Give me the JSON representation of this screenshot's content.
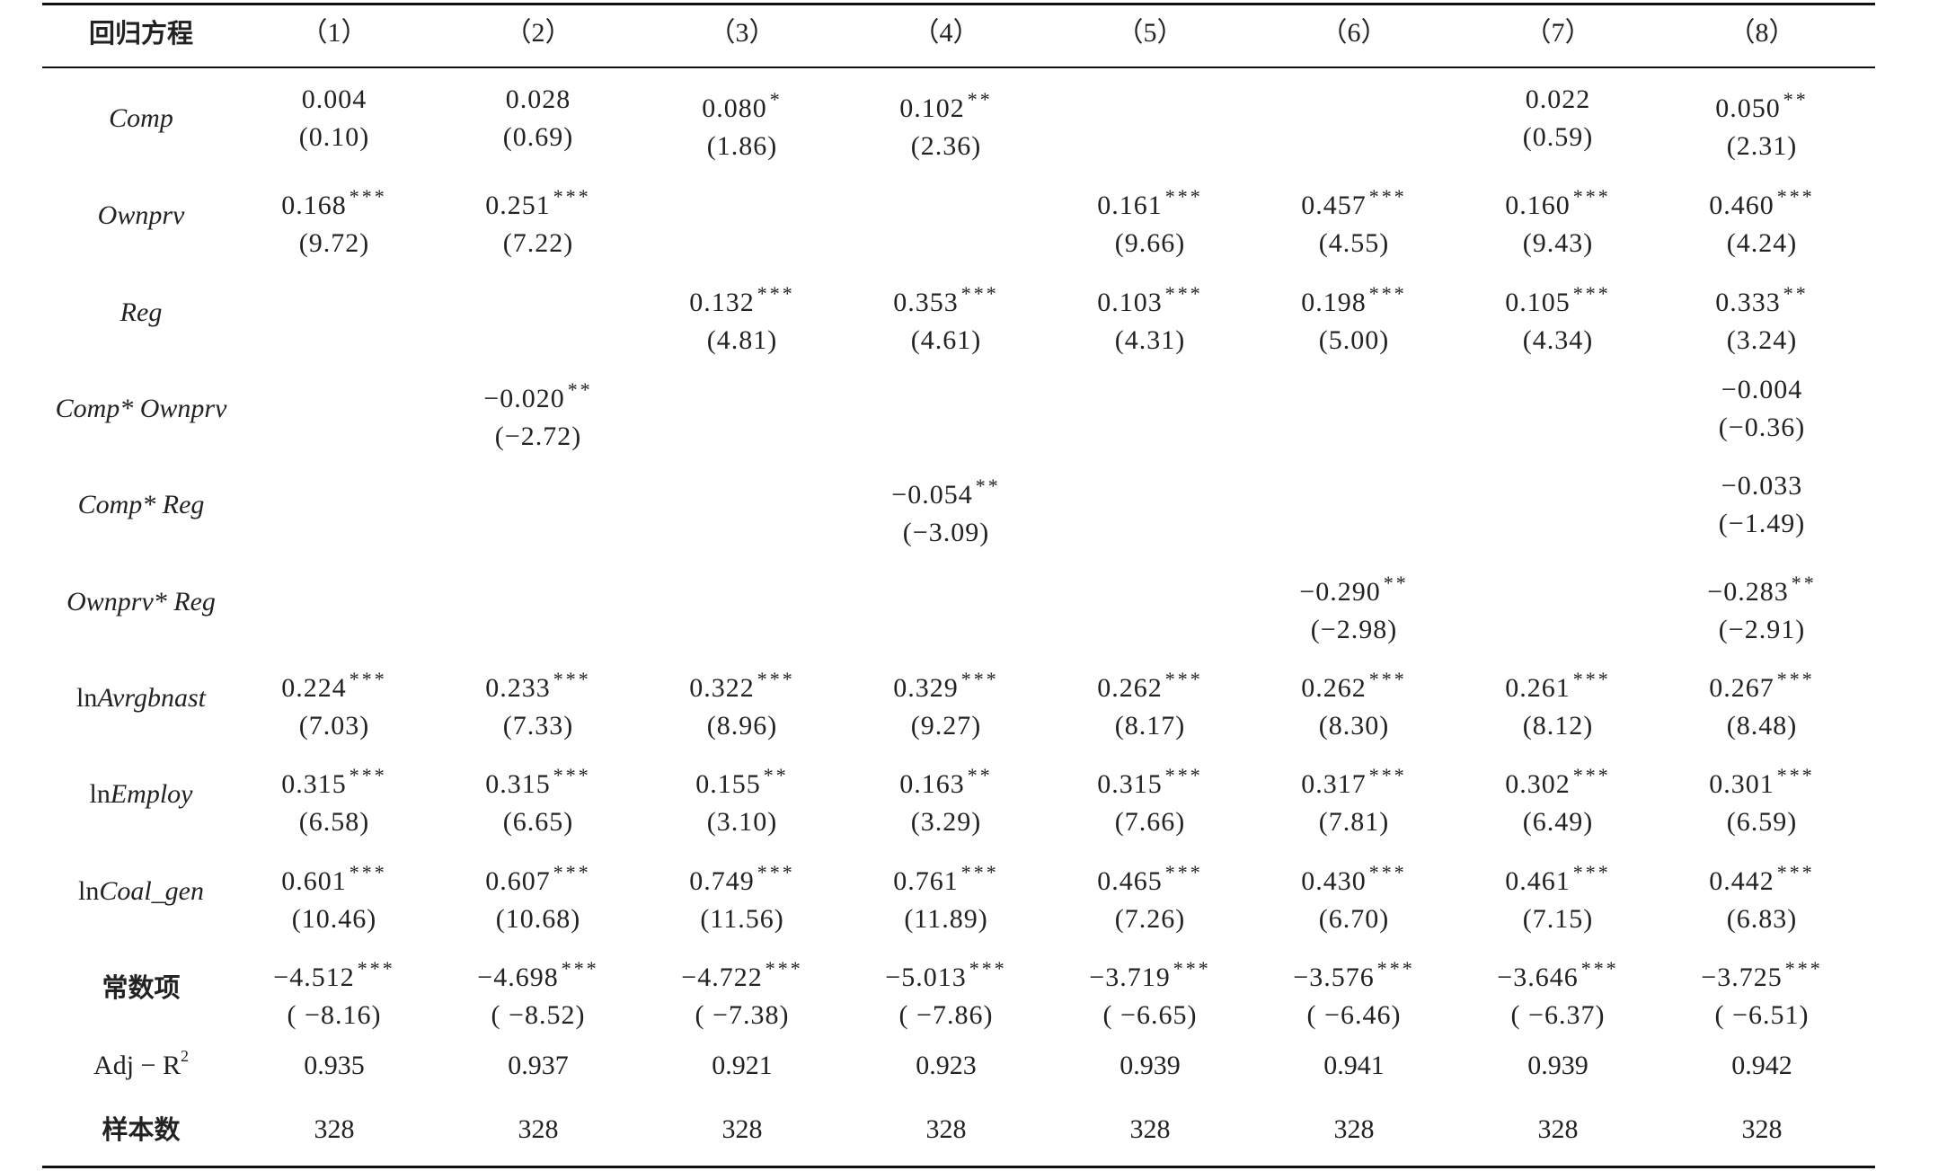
{
  "header": {
    "label": "回归方程",
    "columns": [
      "（1）",
      "（2）",
      "（3）",
      "（4）",
      "（5）",
      "（6）",
      "（7）",
      "（8）"
    ]
  },
  "rows": [
    {
      "label": "Comp",
      "label_type": "italic",
      "cells": [
        {
          "coef": "0.004",
          "stars": "",
          "t": "(0.10)"
        },
        {
          "coef": "0.028",
          "stars": "",
          "t": "(0.69)"
        },
        {
          "coef": "0.080",
          "stars": "*",
          "t": "(1.86)"
        },
        {
          "coef": "0.102",
          "stars": "**",
          "t": "(2.36)"
        },
        null,
        null,
        {
          "coef": "0.022",
          "stars": "",
          "t": "(0.59)"
        },
        {
          "coef": "0.050",
          "stars": "**",
          "t": "(2.31)"
        }
      ]
    },
    {
      "label": "Ownprv",
      "label_type": "italic",
      "cells": [
        {
          "coef": "0.168",
          "stars": "***",
          "t": "(9.72)"
        },
        {
          "coef": "0.251",
          "stars": "***",
          "t": "(7.22)"
        },
        null,
        null,
        {
          "coef": "0.161",
          "stars": "***",
          "t": "(9.66)"
        },
        {
          "coef": "0.457",
          "stars": "***",
          "t": "(4.55)"
        },
        {
          "coef": "0.160",
          "stars": "***",
          "t": "(9.43)"
        },
        {
          "coef": "0.460",
          "stars": "***",
          "t": "(4.24)"
        }
      ]
    },
    {
      "label": "Reg",
      "label_type": "italic",
      "cells": [
        null,
        null,
        {
          "coef": "0.132",
          "stars": "***",
          "t": "(4.81)"
        },
        {
          "coef": "0.353",
          "stars": "***",
          "t": "(4.61)"
        },
        {
          "coef": "0.103",
          "stars": "***",
          "t": "(4.31)"
        },
        {
          "coef": "0.198",
          "stars": "***",
          "t": "(5.00)"
        },
        {
          "coef": "0.105",
          "stars": "***",
          "t": "(4.34)"
        },
        {
          "coef": "0.333",
          "stars": "**",
          "t": "(3.24)"
        }
      ]
    },
    {
      "label": "Comp* Ownprv",
      "label_type": "italic",
      "cells": [
        null,
        {
          "coef": "−0.020",
          "stars": "**",
          "t": "(−2.72)"
        },
        null,
        null,
        null,
        null,
        null,
        {
          "coef": "−0.004",
          "stars": "",
          "t": "(−0.36)"
        }
      ]
    },
    {
      "label": "Comp* Reg",
      "label_type": "italic",
      "cells": [
        null,
        null,
        null,
        {
          "coef": "−0.054",
          "stars": "**",
          "t": "(−3.09)"
        },
        null,
        null,
        null,
        {
          "coef": "−0.033",
          "stars": "",
          "t": "(−1.49)"
        }
      ]
    },
    {
      "label": "Ownprv* Reg",
      "label_type": "italic",
      "cells": [
        null,
        null,
        null,
        null,
        null,
        {
          "coef": "−0.290",
          "stars": "**",
          "t": "(−2.98)"
        },
        null,
        {
          "coef": "−0.283",
          "stars": "**",
          "t": "(−2.91)"
        }
      ]
    },
    {
      "label_prefix": "ln",
      "label": "Avrgbnast",
      "label_type": "ln",
      "cells": [
        {
          "coef": "0.224",
          "stars": "***",
          "t": "(7.03)"
        },
        {
          "coef": "0.233",
          "stars": "***",
          "t": "(7.33)"
        },
        {
          "coef": "0.322",
          "stars": "***",
          "t": "(8.96)"
        },
        {
          "coef": "0.329",
          "stars": "***",
          "t": "(9.27)"
        },
        {
          "coef": "0.262",
          "stars": "***",
          "t": "(8.17)"
        },
        {
          "coef": "0.262",
          "stars": "***",
          "t": "(8.30)"
        },
        {
          "coef": "0.261",
          "stars": "***",
          "t": "(8.12)"
        },
        {
          "coef": "0.267",
          "stars": "***",
          "t": "(8.48)"
        }
      ]
    },
    {
      "label_prefix": "ln",
      "label": "Employ",
      "label_type": "ln",
      "cells": [
        {
          "coef": "0.315",
          "stars": "***",
          "t": "(6.58)"
        },
        {
          "coef": "0.315",
          "stars": "***",
          "t": "(6.65)"
        },
        {
          "coef": "0.155",
          "stars": "**",
          "t": "(3.10)"
        },
        {
          "coef": "0.163",
          "stars": "**",
          "t": "(3.29)"
        },
        {
          "coef": "0.315",
          "stars": "***",
          "t": "(7.66)"
        },
        {
          "coef": "0.317",
          "stars": "***",
          "t": "(7.81)"
        },
        {
          "coef": "0.302",
          "stars": "***",
          "t": "(6.49)"
        },
        {
          "coef": "0.301",
          "stars": "***",
          "t": "(6.59)"
        }
      ]
    },
    {
      "label_prefix": "ln",
      "label": "Coal_gen",
      "label_type": "ln",
      "cells": [
        {
          "coef": "0.601",
          "stars": "***",
          "t": "(10.46)"
        },
        {
          "coef": "0.607",
          "stars": "***",
          "t": "(10.68)"
        },
        {
          "coef": "0.749",
          "stars": "***",
          "t": "(11.56)"
        },
        {
          "coef": "0.761",
          "stars": "***",
          "t": "(11.89)"
        },
        {
          "coef": "0.465",
          "stars": "***",
          "t": "(7.26)"
        },
        {
          "coef": "0.430",
          "stars": "***",
          "t": "(6.70)"
        },
        {
          "coef": "0.461",
          "stars": "***",
          "t": "(7.15)"
        },
        {
          "coef": "0.442",
          "stars": "***",
          "t": "(6.83)"
        }
      ]
    },
    {
      "label": "常数项",
      "label_type": "zh",
      "cells": [
        {
          "coef": "−4.512",
          "stars": "***",
          "t": "( −8.16)"
        },
        {
          "coef": "−4.698",
          "stars": "***",
          "t": "( −8.52)"
        },
        {
          "coef": "−4.722",
          "stars": "***",
          "t": "( −7.38)"
        },
        {
          "coef": "−5.013",
          "stars": "***",
          "t": "( −7.86)"
        },
        {
          "coef": "−3.719",
          "stars": "***",
          "t": "( −6.65)"
        },
        {
          "coef": "−3.576",
          "stars": "***",
          "t": "( −6.46)"
        },
        {
          "coef": "−3.646",
          "stars": "***",
          "t": "( −6.37)"
        },
        {
          "coef": "−3.725",
          "stars": "***",
          "t": "( −6.51)"
        }
      ]
    }
  ],
  "adj_r2": {
    "label": "Adj − R",
    "label_sup": "2",
    "values": [
      "0.935",
      "0.937",
      "0.921",
      "0.923",
      "0.939",
      "0.941",
      "0.939",
      "0.942"
    ]
  },
  "sample": {
    "label": "样本数",
    "values": [
      "328",
      "328",
      "328",
      "328",
      "328",
      "328",
      "328",
      "328"
    ]
  }
}
